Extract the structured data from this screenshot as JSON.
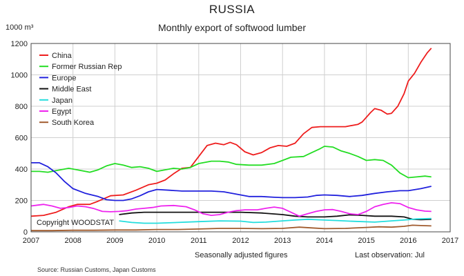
{
  "header": {
    "title": "RUSSIA",
    "subtitle": "Monthly export of softwood lumber",
    "unit": "1000 m³"
  },
  "footer": {
    "note_left": "Seasonally adjusted figures",
    "note_right": "Last observation: Jul",
    "source": "Source: Russian Customs, Japan Customs",
    "copyright": "Copyright WOODSTAT"
  },
  "chart_data": {
    "type": "line",
    "title": "Monthly export of softwood lumber",
    "ylabel": "1000 m³",
    "xlabel": "",
    "xlim": [
      2007,
      2017
    ],
    "ylim": [
      0,
      1200
    ],
    "xticks": [
      2007,
      2008,
      2009,
      2010,
      2011,
      2012,
      2013,
      2014,
      2015,
      2016,
      2017
    ],
    "yticks": [
      0,
      200,
      400,
      600,
      800,
      1000,
      1200
    ],
    "grid": true,
    "legend_position": "top-left",
    "series": [
      {
        "name": "China",
        "color": "#ee1c1c",
        "points": [
          [
            2007.0,
            100
          ],
          [
            2007.3,
            105
          ],
          [
            2007.6,
            125
          ],
          [
            2007.9,
            160
          ],
          [
            2008.1,
            175
          ],
          [
            2008.4,
            175
          ],
          [
            2008.6,
            195
          ],
          [
            2008.9,
            230
          ],
          [
            2009.2,
            235
          ],
          [
            2009.5,
            265
          ],
          [
            2009.8,
            300
          ],
          [
            2010.0,
            310
          ],
          [
            2010.2,
            330
          ],
          [
            2010.4,
            370
          ],
          [
            2010.6,
            405
          ],
          [
            2010.8,
            410
          ],
          [
            2011.0,
            480
          ],
          [
            2011.2,
            550
          ],
          [
            2011.4,
            565
          ],
          [
            2011.6,
            555
          ],
          [
            2011.75,
            570
          ],
          [
            2011.9,
            555
          ],
          [
            2012.1,
            510
          ],
          [
            2012.3,
            490
          ],
          [
            2012.5,
            505
          ],
          [
            2012.7,
            535
          ],
          [
            2012.9,
            550
          ],
          [
            2013.1,
            545
          ],
          [
            2013.3,
            565
          ],
          [
            2013.5,
            625
          ],
          [
            2013.7,
            665
          ],
          [
            2013.9,
            670
          ],
          [
            2014.2,
            670
          ],
          [
            2014.5,
            670
          ],
          [
            2014.8,
            685
          ],
          [
            2014.9,
            700
          ],
          [
            2015.1,
            760
          ],
          [
            2015.2,
            785
          ],
          [
            2015.35,
            775
          ],
          [
            2015.5,
            750
          ],
          [
            2015.6,
            755
          ],
          [
            2015.75,
            800
          ],
          [
            2015.9,
            880
          ],
          [
            2016.0,
            960
          ],
          [
            2016.15,
            1010
          ],
          [
            2016.3,
            1080
          ],
          [
            2016.45,
            1140
          ],
          [
            2016.55,
            1170
          ]
        ]
      },
      {
        "name": "Former Russian Rep",
        "color": "#22dd22",
        "points": [
          [
            2007.0,
            385
          ],
          [
            2007.2,
            385
          ],
          [
            2007.4,
            380
          ],
          [
            2007.6,
            390
          ],
          [
            2007.9,
            405
          ],
          [
            2008.1,
            395
          ],
          [
            2008.4,
            380
          ],
          [
            2008.6,
            395
          ],
          [
            2008.8,
            420
          ],
          [
            2009.0,
            435
          ],
          [
            2009.2,
            425
          ],
          [
            2009.4,
            410
          ],
          [
            2009.6,
            415
          ],
          [
            2009.8,
            405
          ],
          [
            2010.0,
            385
          ],
          [
            2010.2,
            395
          ],
          [
            2010.4,
            405
          ],
          [
            2010.6,
            400
          ],
          [
            2010.8,
            410
          ],
          [
            2011.0,
            435
          ],
          [
            2011.3,
            450
          ],
          [
            2011.5,
            450
          ],
          [
            2011.7,
            445
          ],
          [
            2011.9,
            430
          ],
          [
            2012.2,
            425
          ],
          [
            2012.5,
            425
          ],
          [
            2012.8,
            435
          ],
          [
            2013.0,
            455
          ],
          [
            2013.2,
            475
          ],
          [
            2013.5,
            480
          ],
          [
            2013.7,
            505
          ],
          [
            2013.9,
            530
          ],
          [
            2014.0,
            545
          ],
          [
            2014.2,
            540
          ],
          [
            2014.4,
            515
          ],
          [
            2014.6,
            500
          ],
          [
            2014.8,
            480
          ],
          [
            2015.0,
            455
          ],
          [
            2015.2,
            460
          ],
          [
            2015.4,
            455
          ],
          [
            2015.6,
            425
          ],
          [
            2015.8,
            375
          ],
          [
            2016.0,
            345
          ],
          [
            2016.2,
            350
          ],
          [
            2016.4,
            355
          ],
          [
            2016.55,
            350
          ]
        ]
      },
      {
        "name": "Europe",
        "color": "#2020dd",
        "points": [
          [
            2007.0,
            440
          ],
          [
            2007.2,
            440
          ],
          [
            2007.4,
            415
          ],
          [
            2007.6,
            375
          ],
          [
            2007.8,
            320
          ],
          [
            2008.0,
            275
          ],
          [
            2008.3,
            245
          ],
          [
            2008.6,
            225
          ],
          [
            2008.8,
            205
          ],
          [
            2009.0,
            200
          ],
          [
            2009.2,
            200
          ],
          [
            2009.4,
            210
          ],
          [
            2009.6,
            230
          ],
          [
            2009.8,
            255
          ],
          [
            2010.0,
            270
          ],
          [
            2010.3,
            265
          ],
          [
            2010.6,
            260
          ],
          [
            2011.0,
            260
          ],
          [
            2011.3,
            260
          ],
          [
            2011.6,
            255
          ],
          [
            2011.9,
            240
          ],
          [
            2012.2,
            225
          ],
          [
            2012.5,
            225
          ],
          [
            2012.8,
            220
          ],
          [
            2013.0,
            218
          ],
          [
            2013.3,
            218
          ],
          [
            2013.6,
            222
          ],
          [
            2013.8,
            232
          ],
          [
            2014.0,
            235
          ],
          [
            2014.3,
            232
          ],
          [
            2014.6,
            225
          ],
          [
            2014.9,
            232
          ],
          [
            2015.2,
            245
          ],
          [
            2015.5,
            255
          ],
          [
            2015.8,
            262
          ],
          [
            2016.0,
            262
          ],
          [
            2016.3,
            275
          ],
          [
            2016.55,
            290
          ]
        ]
      },
      {
        "name": "Middle East",
        "color": "#111111",
        "points": [
          [
            2009.1,
            110
          ],
          [
            2009.4,
            120
          ],
          [
            2009.7,
            125
          ],
          [
            2010.0,
            125
          ],
          [
            2010.5,
            125
          ],
          [
            2011.0,
            125
          ],
          [
            2011.5,
            125
          ],
          [
            2012.0,
            125
          ],
          [
            2012.5,
            120
          ],
          [
            2013.0,
            110
          ],
          [
            2013.3,
            100
          ],
          [
            2013.6,
            95
          ],
          [
            2014.0,
            95
          ],
          [
            2014.3,
            100
          ],
          [
            2014.6,
            108
          ],
          [
            2014.9,
            105
          ],
          [
            2015.2,
            100
          ],
          [
            2015.6,
            100
          ],
          [
            2015.9,
            95
          ],
          [
            2016.1,
            80
          ],
          [
            2016.3,
            78
          ],
          [
            2016.55,
            80
          ]
        ]
      },
      {
        "name": "Japan",
        "color": "#22dddd",
        "points": [
          [
            2009.1,
            70
          ],
          [
            2009.4,
            60
          ],
          [
            2009.7,
            55
          ],
          [
            2010.0,
            55
          ],
          [
            2010.5,
            60
          ],
          [
            2011.0,
            65
          ],
          [
            2011.5,
            70
          ],
          [
            2012.0,
            68
          ],
          [
            2012.3,
            60
          ],
          [
            2012.6,
            62
          ],
          [
            2013.0,
            70
          ],
          [
            2013.3,
            75
          ],
          [
            2013.6,
            80
          ],
          [
            2014.0,
            75
          ],
          [
            2014.3,
            72
          ],
          [
            2014.6,
            68
          ],
          [
            2014.9,
            65
          ],
          [
            2015.2,
            62
          ],
          [
            2015.6,
            70
          ],
          [
            2015.9,
            75
          ],
          [
            2016.2,
            82
          ],
          [
            2016.55,
            85
          ]
        ]
      },
      {
        "name": "Egypt",
        "color": "#ee22ee",
        "points": [
          [
            2007.0,
            165
          ],
          [
            2007.15,
            170
          ],
          [
            2007.3,
            175
          ],
          [
            2007.5,
            165
          ],
          [
            2007.7,
            150
          ],
          [
            2007.9,
            155
          ],
          [
            2008.1,
            165
          ],
          [
            2008.3,
            160
          ],
          [
            2008.5,
            148
          ],
          [
            2008.7,
            130
          ],
          [
            2008.9,
            128
          ],
          [
            2009.1,
            130
          ],
          [
            2009.3,
            135
          ],
          [
            2009.5,
            145
          ],
          [
            2009.7,
            150
          ],
          [
            2009.9,
            155
          ],
          [
            2010.1,
            165
          ],
          [
            2010.4,
            168
          ],
          [
            2010.7,
            160
          ],
          [
            2010.9,
            140
          ],
          [
            2011.1,
            115
          ],
          [
            2011.3,
            105
          ],
          [
            2011.5,
            110
          ],
          [
            2011.7,
            125
          ],
          [
            2011.9,
            135
          ],
          [
            2012.1,
            140
          ],
          [
            2012.4,
            140
          ],
          [
            2012.6,
            150
          ],
          [
            2012.8,
            158
          ],
          [
            2013.0,
            150
          ],
          [
            2013.2,
            125
          ],
          [
            2013.4,
            100
          ],
          [
            2013.6,
            115
          ],
          [
            2013.8,
            130
          ],
          [
            2014.0,
            140
          ],
          [
            2014.2,
            142
          ],
          [
            2014.4,
            130
          ],
          [
            2014.6,
            115
          ],
          [
            2014.8,
            110
          ],
          [
            2015.0,
            130
          ],
          [
            2015.2,
            160
          ],
          [
            2015.4,
            175
          ],
          [
            2015.6,
            185
          ],
          [
            2015.8,
            180
          ],
          [
            2016.0,
            155
          ],
          [
            2016.2,
            140
          ],
          [
            2016.4,
            132
          ],
          [
            2016.55,
            130
          ]
        ]
      },
      {
        "name": "South Korea",
        "color": "#a05a2c",
        "points": [
          [
            2007.0,
            8
          ],
          [
            2007.5,
            8
          ],
          [
            2008.0,
            10
          ],
          [
            2008.5,
            10
          ],
          [
            2009.0,
            12
          ],
          [
            2009.5,
            12
          ],
          [
            2010.0,
            15
          ],
          [
            2010.5,
            15
          ],
          [
            2011.0,
            18
          ],
          [
            2011.5,
            22
          ],
          [
            2012.0,
            22
          ],
          [
            2012.5,
            20
          ],
          [
            2013.0,
            22
          ],
          [
            2013.4,
            30
          ],
          [
            2013.7,
            25
          ],
          [
            2014.0,
            20
          ],
          [
            2014.5,
            22
          ],
          [
            2015.0,
            28
          ],
          [
            2015.3,
            32
          ],
          [
            2015.6,
            30
          ],
          [
            2015.9,
            35
          ],
          [
            2016.1,
            42
          ],
          [
            2016.3,
            40
          ],
          [
            2016.55,
            38
          ]
        ]
      }
    ]
  }
}
